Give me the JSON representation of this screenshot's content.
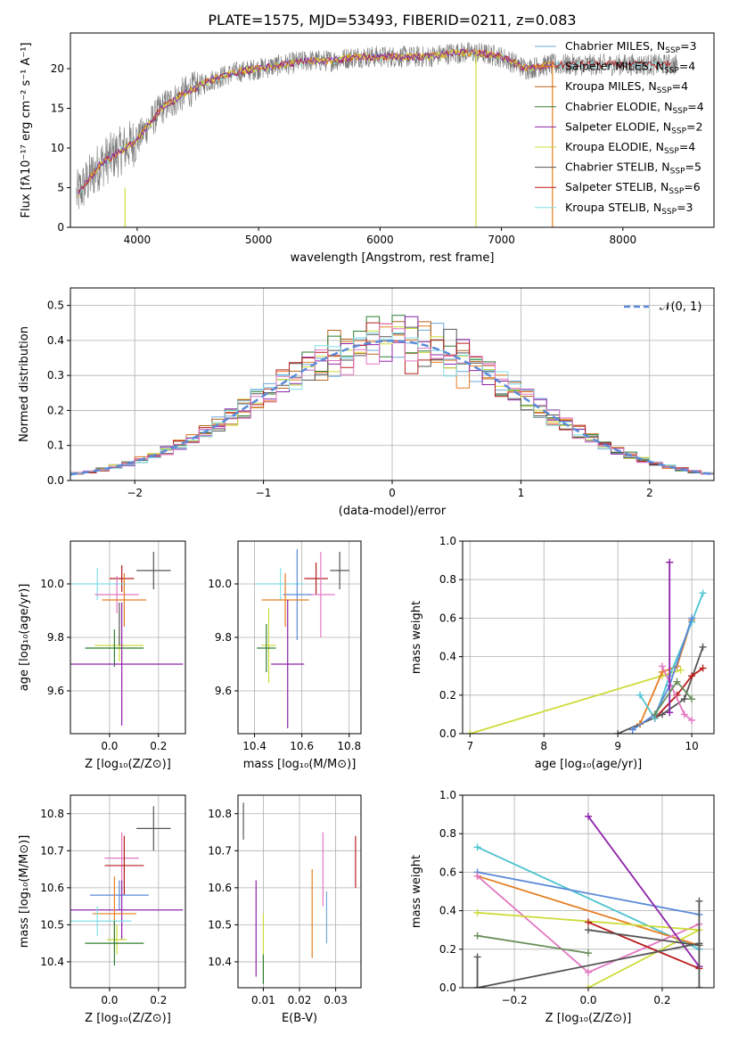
{
  "figure_title": "PLATE=1575, MJD=53493, FIBERID=0211, z=0.083",
  "colors": {
    "c1": "#6fa8dc",
    "c2": "#e67e22",
    "c3": "#b5651d",
    "c4": "#2e7d32",
    "c5": "#8e24aa",
    "c6": "#cddc39",
    "c7": "#555555",
    "c8": "#b71c1c",
    "c9": "#80deea",
    "pink": "#e377c2",
    "blue": "#5b8ad8",
    "teal": "#4cc3d0",
    "green": "#6a8f5a",
    "dash": "#5b8ad8"
  },
  "legend": [
    {
      "name": "Chabrier MILES, N",
      "sub": "SSP",
      "tail": "=3",
      "color": "c1"
    },
    {
      "name": "Salpeter MILES, N",
      "sub": "SSP",
      "tail": "=4",
      "color": "c2"
    },
    {
      "name": "Kroupa MILES, N",
      "sub": "SSP",
      "tail": "=4",
      "color": "c3"
    },
    {
      "name": "Chabrier ELODIE, N",
      "sub": "SSP",
      "tail": "=4",
      "color": "c4"
    },
    {
      "name": "Salpeter ELODIE, N",
      "sub": "SSP",
      "tail": "=2",
      "color": "c5"
    },
    {
      "name": "Kroupa ELODIE, N",
      "sub": "SSP",
      "tail": "=4",
      "color": "c6"
    },
    {
      "name": "Chabrier STELIB, N",
      "sub": "SSP",
      "tail": "=5",
      "color": "c7"
    },
    {
      "name": "Salpeter STELIB, N",
      "sub": "SSP",
      "tail": "=6",
      "color": "c8"
    },
    {
      "name": "Kroupa STELIB, N",
      "sub": "SSP",
      "tail": "=3",
      "color": "c9"
    }
  ],
  "chart_data": [
    {
      "type": "line",
      "xlabel": "wavelength [Angstrom, rest frame]",
      "ylabel": "Flux [fλ10⁻¹⁷ erg cm⁻² s⁻¹ A⁻¹]",
      "xlim": [
        3450,
        8750
      ],
      "ylim": [
        0,
        24.5
      ],
      "xticks": [
        "4000",
        "5000",
        "6000",
        "7000",
        "8000"
      ],
      "yticks": [
        "0",
        "5",
        "10",
        "15",
        "20"
      ],
      "grid": false,
      "legend_loc": "right",
      "spectrum_envelope": {
        "x": [
          3500,
          3700,
          3900,
          4000,
          4200,
          4400,
          4600,
          4800,
          5000,
          5200,
          5400,
          5600,
          5800,
          6000,
          6200,
          6400,
          6600,
          6800,
          7000,
          7200,
          7400
        ],
        "y": [
          4,
          8,
          10,
          11,
          15,
          17,
          18.5,
          19.5,
          20,
          20.5,
          21,
          21,
          21.5,
          21.5,
          21.5,
          21.5,
          22,
          22,
          21.5,
          20,
          20.5
        ]
      }
    },
    {
      "type": "line",
      "xlabel": "(data-model)/error",
      "ylabel": "Normed distribution",
      "xlim": [
        -2.5,
        2.5
      ],
      "ylim": [
        0,
        0.55
      ],
      "xticks": [
        "−2",
        "−1",
        "0",
        "1",
        "2"
      ],
      "yticks": [
        "0.0",
        "0.1",
        "0.2",
        "0.3",
        "0.4",
        "0.5"
      ],
      "grid": true,
      "legend_loc": "top-right",
      "legend_label": "𝒩(0, 1)",
      "gaussian": {
        "mu": 0,
        "sigma": 1
      }
    },
    {
      "type": "scatter",
      "xlabel": "Z [log₁₀(Z/Z⊙)]",
      "ylabel": "age  [log₁₀(age/yr)]",
      "xlim": [
        -0.16,
        0.31
      ],
      "ylim": [
        9.44,
        10.16
      ],
      "xticks": [
        "0.0",
        "0.2"
      ],
      "yticks": [
        "9.6",
        "9.8",
        "10.0"
      ],
      "grid": true,
      "points": [
        {
          "x": 0.18,
          "y": 10.05,
          "xerr": 0.07,
          "yerr": 0.07,
          "color": "c7"
        },
        {
          "x": 0.05,
          "y": 10.02,
          "xerr": 0.05,
          "yerr": 0.05,
          "color": "c8"
        },
        {
          "x": -0.05,
          "y": 10.0,
          "xerr": 0.12,
          "yerr": 0.06,
          "color": "c9"
        },
        {
          "x": 0.03,
          "y": 9.96,
          "xerr": 0.09,
          "yerr": 0.07,
          "color": "pink"
        },
        {
          "x": 0.06,
          "y": 9.94,
          "xerr": 0.09,
          "yerr": 0.1,
          "color": "c2"
        },
        {
          "x": 0.04,
          "y": 9.77,
          "xerr": 0.1,
          "yerr": 0.06,
          "color": "c6"
        },
        {
          "x": 0.02,
          "y": 9.76,
          "xerr": 0.12,
          "yerr": 0.07,
          "color": "c4"
        },
        {
          "x": 0.05,
          "y": 9.7,
          "xerr": 0.25,
          "yerr": 0.23,
          "color": "c5"
        },
        {
          "x": 0.04,
          "y": 9.85,
          "xerr": 0.0,
          "yerr": 0.08,
          "color": "c7"
        }
      ]
    },
    {
      "type": "scatter",
      "xlabel": "mass [log₁₀(M/M⊙)]",
      "ylabel": "",
      "xlim": [
        10.33,
        10.85
      ],
      "ylim": [
        9.44,
        10.16
      ],
      "xticks": [
        "10.4",
        "10.6",
        "10.8"
      ],
      "yticks": [
        "9.6",
        "9.8",
        "10.0"
      ],
      "grid": true,
      "points": [
        {
          "x": 10.76,
          "y": 10.05,
          "xerr": 0.04,
          "yerr": 0.07,
          "color": "c7"
        },
        {
          "x": 10.66,
          "y": 10.02,
          "xerr": 0.05,
          "yerr": 0.06,
          "color": "c8"
        },
        {
          "x": 10.51,
          "y": 10.0,
          "xerr": 0.1,
          "yerr": 0.06,
          "color": "c9"
        },
        {
          "x": 10.68,
          "y": 9.96,
          "xerr": 0.06,
          "yerr": 0.16,
          "color": "pink"
        },
        {
          "x": 10.58,
          "y": 9.96,
          "xerr": 0.06,
          "yerr": 0.17,
          "color": "blue"
        },
        {
          "x": 10.53,
          "y": 9.94,
          "xerr": 0.1,
          "yerr": 0.1,
          "color": "c2"
        },
        {
          "x": 10.46,
          "y": 9.77,
          "xerr": 0.03,
          "yerr": 0.14,
          "color": "c6"
        },
        {
          "x": 10.45,
          "y": 9.76,
          "xerr": 0.04,
          "yerr": 0.09,
          "color": "c4"
        },
        {
          "x": 10.54,
          "y": 9.7,
          "xerr": 0.07,
          "yerr": 0.24,
          "color": "c5"
        }
      ]
    },
    {
      "type": "line",
      "xlabel": "age  [log₁₀(age/yr)]",
      "ylabel": "mass weight",
      "xlim": [
        6.9,
        10.3
      ],
      "ylim": [
        0,
        1.0
      ],
      "xticks": [
        "7",
        "8",
        "9",
        "10"
      ],
      "yticks": [
        "0.0",
        "0.2",
        "0.4",
        "0.6",
        "0.8",
        "1.0"
      ],
      "grid": true,
      "series": [
        {
          "color": "c6",
          "x": [
            7.0,
            9.85,
            9.6
          ],
          "y": [
            0.0,
            0.33,
            0.3
          ]
        },
        {
          "color": "c7",
          "x": [
            9.0,
            9.3,
            9.6,
            9.9,
            10.15
          ],
          "y": [
            0.0,
            0.05,
            0.1,
            0.18,
            0.45
          ]
        },
        {
          "color": "c8",
          "x": [
            9.5,
            9.8,
            10.0,
            10.15
          ],
          "y": [
            0.08,
            0.2,
            0.3,
            0.34
          ]
        },
        {
          "color": "c2",
          "x": [
            9.3,
            9.6,
            9.8,
            10.0
          ],
          "y": [
            0.05,
            0.32,
            0.35,
            0.59
          ]
        },
        {
          "color": "teal",
          "x": [
            9.3,
            9.5,
            9.7,
            10.0,
            10.15
          ],
          "y": [
            0.2,
            0.08,
            0.3,
            0.58,
            0.73
          ]
        },
        {
          "color": "blue",
          "x": [
            9.2,
            9.5,
            9.7,
            10.0
          ],
          "y": [
            0.02,
            0.1,
            0.25,
            0.6
          ]
        },
        {
          "color": "pink",
          "x": [
            9.6,
            9.9,
            10.0
          ],
          "y": [
            0.35,
            0.1,
            0.07
          ]
        },
        {
          "color": "c5",
          "x": [
            9.7,
            9.7
          ],
          "y": [
            0.11,
            0.89
          ]
        },
        {
          "color": "green",
          "x": [
            9.5,
            9.8,
            10.0
          ],
          "y": [
            0.1,
            0.27,
            0.18
          ]
        }
      ]
    },
    {
      "type": "scatter",
      "xlabel": "Z [log₁₀(Z/Z⊙)]",
      "ylabel": "mass [log₁₀(M/M⊙)]",
      "xlim": [
        -0.16,
        0.31
      ],
      "ylim": [
        10.33,
        10.85
      ],
      "xticks": [
        "0.0",
        "0.2"
      ],
      "yticks": [
        "10.4",
        "10.5",
        "10.6",
        "10.7",
        "10.8"
      ],
      "grid": true,
      "points": [
        {
          "x": 0.18,
          "y": 10.76,
          "xerr": 0.07,
          "yerr": 0.06,
          "color": "c7"
        },
        {
          "x": 0.05,
          "y": 10.68,
          "xerr": 0.07,
          "yerr": 0.07,
          "color": "pink"
        },
        {
          "x": 0.06,
          "y": 10.66,
          "xerr": 0.08,
          "yerr": 0.08,
          "color": "c8"
        },
        {
          "x": 0.04,
          "y": 10.58,
          "xerr": 0.12,
          "yerr": 0.04,
          "color": "blue"
        },
        {
          "x": 0.05,
          "y": 10.54,
          "xerr": 0.25,
          "yerr": 0.08,
          "color": "c5"
        },
        {
          "x": 0.02,
          "y": 10.53,
          "xerr": 0.09,
          "yerr": 0.1,
          "color": "c2"
        },
        {
          "x": -0.05,
          "y": 10.51,
          "xerr": 0.14,
          "yerr": 0.04,
          "color": "c9"
        },
        {
          "x": 0.03,
          "y": 10.46,
          "xerr": 0.04,
          "yerr": 0.04,
          "color": "c6"
        },
        {
          "x": 0.02,
          "y": 10.45,
          "xerr": 0.12,
          "yerr": 0.06,
          "color": "c4"
        }
      ]
    },
    {
      "type": "scatter",
      "xlabel": "E(B-V)",
      "ylabel": "",
      "xlim": [
        0.003,
        0.037
      ],
      "ylim": [
        10.33,
        10.85
      ],
      "xticks": [
        "0.01",
        "0.02",
        "0.03"
      ],
      "yticks": [
        "10.4",
        "10.5",
        "10.6",
        "10.7",
        "10.8"
      ],
      "grid": true,
      "points": [
        {
          "x": 0.0045,
          "y": 10.78,
          "xerr": 0,
          "yerr": 0.05,
          "color": "c7"
        },
        {
          "x": 0.0355,
          "y": 10.67,
          "xerr": 0,
          "yerr": 0.07,
          "color": "c8"
        },
        {
          "x": 0.0265,
          "y": 10.65,
          "xerr": 0,
          "yerr": 0.1,
          "color": "pink"
        },
        {
          "x": 0.0235,
          "y": 10.53,
          "xerr": 0,
          "yerr": 0.12,
          "color": "c2"
        },
        {
          "x": 0.0275,
          "y": 10.52,
          "xerr": 0,
          "yerr": 0.07,
          "color": "c1"
        },
        {
          "x": 0.008,
          "y": 10.49,
          "xerr": 0,
          "yerr": 0.13,
          "color": "c5"
        },
        {
          "x": 0.01,
          "y": 10.45,
          "xerr": 0,
          "yerr": 0.08,
          "color": "c6"
        },
        {
          "x": 0.01,
          "y": 10.38,
          "xerr": 0,
          "yerr": 0.04,
          "color": "c4"
        }
      ]
    },
    {
      "type": "line",
      "xlabel": "Z [log₁₀(Z/Z⊙)]",
      "ylabel": "mass weight",
      "xlim": [
        -0.34,
        0.34
      ],
      "ylim": [
        0,
        1.0
      ],
      "xticks": [
        "−0.2",
        "0.0",
        "0.2"
      ],
      "yticks": [
        "0.0",
        "0.2",
        "0.4",
        "0.6",
        "0.8",
        "1.0"
      ],
      "grid": true,
      "series": [
        {
          "color": "teal",
          "x": [
            -0.3,
            0.3
          ],
          "y": [
            0.73,
            0.2
          ]
        },
        {
          "color": "blue",
          "x": [
            -0.3,
            0.3
          ],
          "y": [
            0.6,
            0.38
          ]
        },
        {
          "color": "c2",
          "x": [
            -0.3,
            0.3
          ],
          "y": [
            0.58,
            0.22
          ]
        },
        {
          "color": "pink",
          "x": [
            -0.3,
            0.0,
            0.3
          ],
          "y": [
            0.58,
            0.08,
            0.33
          ]
        },
        {
          "color": "c6",
          "x": [
            -0.3,
            0.3
          ],
          "y": [
            0.39,
            0.3
          ]
        },
        {
          "color": "c6",
          "x": [
            0.0,
            0.3
          ],
          "y": [
            0.0,
            0.3
          ]
        },
        {
          "color": "green",
          "x": [
            -0.3,
            0.0
          ],
          "y": [
            0.27,
            0.18
          ]
        },
        {
          "color": "c5",
          "x": [
            0.0,
            0.3
          ],
          "y": [
            0.89,
            0.11
          ]
        },
        {
          "color": "c8",
          "x": [
            0.0,
            0.3
          ],
          "y": [
            0.34,
            0.1
          ]
        },
        {
          "color": "c7",
          "x": [
            -0.3,
            0.3
          ],
          "y": [
            0.0,
            0.23
          ]
        },
        {
          "color": "c7",
          "x": [
            -0.3,
            -0.3
          ],
          "y": [
            0.0,
            0.16
          ]
        },
        {
          "color": "c7",
          "x": [
            0.0,
            0.3
          ],
          "y": [
            0.3,
            0.22
          ]
        },
        {
          "color": "c7",
          "x": [
            0.3,
            0.3
          ],
          "y": [
            0.0,
            0.45
          ]
        }
      ]
    }
  ]
}
